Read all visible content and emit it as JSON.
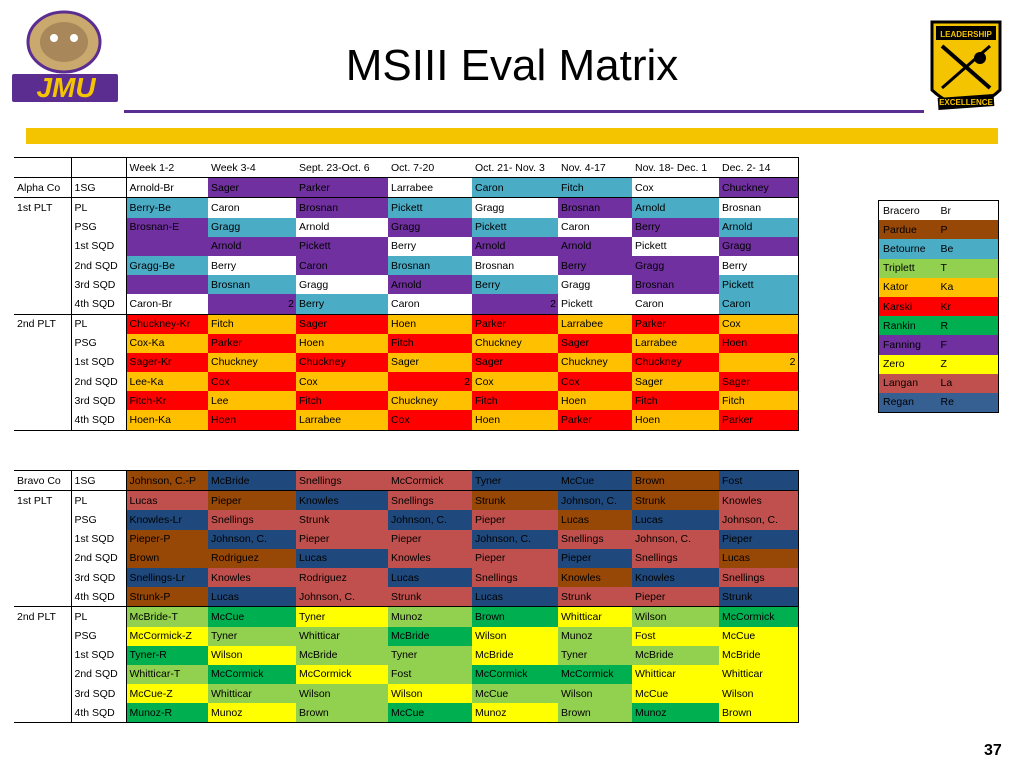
{
  "title": "MSIII Eval Matrix",
  "page_number": "37",
  "logos": {
    "left": "JMU",
    "right_top": "LEADERSHIP",
    "right_bottom": "EXCELLENCE"
  },
  "colors": {
    "gold_bar": "#f5c400",
    "purple_line": "#5b2d91"
  },
  "headers": [
    "",
    "",
    "Week 1-2",
    "Week 3-4",
    "Sept. 23-Oct. 6",
    "Oct. 7-20",
    "Oct. 21- Nov. 3",
    "Nov. 4-17",
    "Nov. 18- Dec. 1",
    "Dec. 2- 14"
  ],
  "alpha_rows": [
    [
      [
        "Alpha Co",
        ""
      ],
      [
        "1SG",
        ""
      ],
      [
        "Arnold-Br",
        ""
      ],
      [
        "Sager",
        "purple"
      ],
      [
        "Parker",
        "purple"
      ],
      [
        "Larrabee",
        ""
      ],
      [
        "Caron",
        "teal"
      ],
      [
        "Fitch",
        "teal"
      ],
      [
        "Cox",
        ""
      ],
      [
        "Chuckney",
        "purple"
      ]
    ],
    [
      [
        "1st PLT",
        ""
      ],
      [
        "PL",
        ""
      ],
      [
        "Berry-Be",
        "teal"
      ],
      [
        "Caron",
        ""
      ],
      [
        "Brosnan",
        "purple"
      ],
      [
        "Pickett",
        "teal"
      ],
      [
        "Gragg",
        ""
      ],
      [
        "Brosnan",
        "purple"
      ],
      [
        "Arnold",
        "teal"
      ],
      [
        "Brosnan",
        ""
      ]
    ],
    [
      [
        "",
        ""
      ],
      [
        "PSG",
        ""
      ],
      [
        "Brosnan-E",
        "purple"
      ],
      [
        "Gragg",
        "teal"
      ],
      [
        "Arnold",
        ""
      ],
      [
        "Gragg",
        "purple"
      ],
      [
        "Pickett",
        "teal"
      ],
      [
        "Caron",
        ""
      ],
      [
        "Berry",
        "purple"
      ],
      [
        "Arnold",
        "teal"
      ]
    ],
    [
      [
        "",
        ""
      ],
      [
        "1st SQD",
        ""
      ],
      [
        "",
        "purple"
      ],
      [
        "Arnold",
        "purple"
      ],
      [
        "Pickett",
        "purple"
      ],
      [
        "Berry",
        ""
      ],
      [
        "Arnold",
        "purple"
      ],
      [
        "Arnold",
        "purple"
      ],
      [
        "Pickett",
        ""
      ],
      [
        "Gragg",
        "purple"
      ]
    ],
    [
      [
        "",
        ""
      ],
      [
        "2nd SQD",
        ""
      ],
      [
        "Gragg-Be",
        "teal"
      ],
      [
        "Berry",
        ""
      ],
      [
        "Caron",
        "purple"
      ],
      [
        "Brosnan",
        "teal"
      ],
      [
        "Brosnan",
        ""
      ],
      [
        "Berry",
        "purple"
      ],
      [
        "Gragg",
        "purple"
      ],
      [
        "Berry",
        ""
      ]
    ],
    [
      [
        "",
        ""
      ],
      [
        "3rd SQD",
        ""
      ],
      [
        "",
        "purple"
      ],
      [
        "Brosnan",
        "teal"
      ],
      [
        "Gragg",
        ""
      ],
      [
        "Arnold",
        "purple"
      ],
      [
        "Berry",
        "teal"
      ],
      [
        "Gragg",
        ""
      ],
      [
        "Brosnan",
        "purple"
      ],
      [
        "Pickett",
        "teal"
      ]
    ],
    [
      [
        "",
        ""
      ],
      [
        "4th SQD",
        ""
      ],
      [
        "Caron-Br",
        ""
      ],
      [
        "2",
        "purple",
        "num"
      ],
      [
        "Berry",
        "teal"
      ],
      [
        "Caron",
        ""
      ],
      [
        "2",
        "purple",
        "num"
      ],
      [
        "Pickett",
        ""
      ],
      [
        "Caron",
        ""
      ],
      [
        "Caron",
        "teal"
      ]
    ],
    [
      [
        "2nd PLT",
        ""
      ],
      [
        "PL",
        ""
      ],
      [
        "Chuckney-Kr",
        "red"
      ],
      [
        "Fitch",
        "orange"
      ],
      [
        "Sager",
        "red"
      ],
      [
        "Hoen",
        "orange"
      ],
      [
        "Parker",
        "red"
      ],
      [
        "Larrabee",
        "orange"
      ],
      [
        "Parker",
        "red"
      ],
      [
        "Cox",
        "orange"
      ]
    ],
    [
      [
        "",
        ""
      ],
      [
        "PSG",
        ""
      ],
      [
        "Cox-Ka",
        "orange"
      ],
      [
        "Parker",
        "red"
      ],
      [
        "Hoen",
        "orange"
      ],
      [
        "Fitch",
        "red"
      ],
      [
        "Chuckney",
        "orange"
      ],
      [
        "Sager",
        "red"
      ],
      [
        "Larrabee",
        "orange"
      ],
      [
        "Hoen",
        "red"
      ]
    ],
    [
      [
        "",
        ""
      ],
      [
        "1st SQD",
        ""
      ],
      [
        "Sager-Kr",
        "red"
      ],
      [
        "Chuckney",
        "orange"
      ],
      [
        "Chuckney",
        "red"
      ],
      [
        "Sager",
        "orange"
      ],
      [
        "Sager",
        "red"
      ],
      [
        "Chuckney",
        "orange"
      ],
      [
        "Chuckney",
        "red"
      ],
      [
        "2",
        "orange",
        "num"
      ]
    ],
    [
      [
        "",
        ""
      ],
      [
        "2nd SQD",
        ""
      ],
      [
        "Lee-Ka",
        "orange"
      ],
      [
        "Cox",
        "red"
      ],
      [
        "Cox",
        "orange"
      ],
      [
        "2",
        "red",
        "num"
      ],
      [
        "Cox",
        "orange"
      ],
      [
        "Cox",
        "red"
      ],
      [
        "Sager",
        "orange"
      ],
      [
        "Sager",
        "red"
      ]
    ],
    [
      [
        "",
        ""
      ],
      [
        "3rd SQD",
        ""
      ],
      [
        "Fitch-Kr",
        "red"
      ],
      [
        "Lee",
        "orange"
      ],
      [
        "Fitch",
        "red"
      ],
      [
        "Chuckney",
        "orange"
      ],
      [
        "Fitch",
        "red"
      ],
      [
        "Hoen",
        "orange"
      ],
      [
        "Fitch",
        "red"
      ],
      [
        "Fitch",
        "orange"
      ]
    ],
    [
      [
        "",
        ""
      ],
      [
        "4th SQD",
        ""
      ],
      [
        "Hoen-Ka",
        "orange"
      ],
      [
        "Hoen",
        "red"
      ],
      [
        "Larrabee",
        "orange"
      ],
      [
        "Cox",
        "red"
      ],
      [
        "Hoen",
        "orange"
      ],
      [
        "Parker",
        "red"
      ],
      [
        "Hoen",
        "orange"
      ],
      [
        "Parker",
        "red"
      ]
    ]
  ],
  "bravo_rows": [
    [
      [
        "Bravo Co",
        ""
      ],
      [
        "1SG",
        ""
      ],
      [
        "Johnson, C.-P",
        "brown"
      ],
      [
        "McBride",
        "blue"
      ],
      [
        "Snellings",
        "rose"
      ],
      [
        "McCormick",
        "rose"
      ],
      [
        "Tyner",
        "blue"
      ],
      [
        "McCue",
        "blue"
      ],
      [
        "Brown",
        "brown"
      ],
      [
        "Fost",
        "blue"
      ]
    ],
    [
      [
        "1st PLT",
        ""
      ],
      [
        "PL",
        ""
      ],
      [
        "Lucas",
        "rose"
      ],
      [
        "Pieper",
        "brown"
      ],
      [
        "Knowles",
        "blue"
      ],
      [
        "Snellings",
        "rose"
      ],
      [
        "Strunk",
        "brown"
      ],
      [
        "Johnson, C.",
        "blue"
      ],
      [
        "Strunk",
        "brown"
      ],
      [
        "Knowles",
        "rose"
      ]
    ],
    [
      [
        "",
        ""
      ],
      [
        "PSG",
        ""
      ],
      [
        "Knowles-Lr",
        "blue"
      ],
      [
        "Snellings",
        "rose"
      ],
      [
        "Strunk",
        "rose"
      ],
      [
        "Johnson, C.",
        "blue"
      ],
      [
        "Pieper",
        "rose"
      ],
      [
        "Lucas",
        "brown"
      ],
      [
        "Lucas",
        "blue"
      ],
      [
        "Johnson, C.",
        "rose"
      ]
    ],
    [
      [
        "",
        ""
      ],
      [
        "1st SQD",
        ""
      ],
      [
        "Pieper-P",
        "brown"
      ],
      [
        "Johnson, C.",
        "blue"
      ],
      [
        "Pieper",
        "rose"
      ],
      [
        "Pieper",
        "rose"
      ],
      [
        "Johnson, C.",
        "blue"
      ],
      [
        "Snellings",
        "rose"
      ],
      [
        "Johnson, C.",
        "rose"
      ],
      [
        "Pieper",
        "blue"
      ]
    ],
    [
      [
        "",
        ""
      ],
      [
        "2nd SQD",
        ""
      ],
      [
        "Brown",
        "brown"
      ],
      [
        "Rodriguez",
        "brown"
      ],
      [
        "Lucas",
        "blue"
      ],
      [
        "Knowles",
        "rose"
      ],
      [
        "Pieper",
        "rose"
      ],
      [
        "Pieper",
        "blue"
      ],
      [
        "Snellings",
        "rose"
      ],
      [
        "Lucas",
        "brown"
      ]
    ],
    [
      [
        "",
        ""
      ],
      [
        "3rd SQD",
        ""
      ],
      [
        "Snellings-Lr",
        "blue"
      ],
      [
        "Knowles",
        "rose"
      ],
      [
        "Rodriguez",
        "rose"
      ],
      [
        "Lucas",
        "blue"
      ],
      [
        "Snellings",
        "rose"
      ],
      [
        "Knowles",
        "brown"
      ],
      [
        "Knowles",
        "blue"
      ],
      [
        "Snellings",
        "rose"
      ]
    ],
    [
      [
        "",
        ""
      ],
      [
        "4th SQD",
        ""
      ],
      [
        "Strunk-P",
        "brown"
      ],
      [
        "Lucas",
        "blue"
      ],
      [
        "Johnson, C.",
        "rose"
      ],
      [
        "Strunk",
        "rose"
      ],
      [
        "Lucas",
        "blue"
      ],
      [
        "Strunk",
        "rose"
      ],
      [
        "Pieper",
        "rose"
      ],
      [
        "Strunk",
        "blue"
      ]
    ],
    [
      [
        "2nd PLT",
        ""
      ],
      [
        "PL",
        ""
      ],
      [
        "McBride-T",
        "green"
      ],
      [
        "McCue",
        "dgreen"
      ],
      [
        "Tyner",
        "yellow"
      ],
      [
        "Munoz",
        "green"
      ],
      [
        "Brown",
        "dgreen"
      ],
      [
        "Whitticar",
        "yellow"
      ],
      [
        "Wilson",
        "green"
      ],
      [
        "McCormick",
        "dgreen"
      ]
    ],
    [
      [
        "",
        ""
      ],
      [
        "PSG",
        ""
      ],
      [
        "McCormick-Z",
        "yellow"
      ],
      [
        "Tyner",
        "green"
      ],
      [
        "Whitticar",
        "green"
      ],
      [
        "McBride",
        "dgreen"
      ],
      [
        "Wilson",
        "yellow"
      ],
      [
        "Munoz",
        "green"
      ],
      [
        "Fost",
        "yellow"
      ],
      [
        "McCue",
        "yellow"
      ]
    ],
    [
      [
        "",
        ""
      ],
      [
        "1st SQD",
        ""
      ],
      [
        "Tyner-R",
        "dgreen"
      ],
      [
        "Wilson",
        "yellow"
      ],
      [
        "McBride",
        "green"
      ],
      [
        "Tyner",
        "green"
      ],
      [
        "McBride",
        "yellow"
      ],
      [
        "Tyner",
        "green"
      ],
      [
        "McBride",
        "green"
      ],
      [
        "McBride",
        "yellow"
      ]
    ],
    [
      [
        "",
        ""
      ],
      [
        "2nd SQD",
        ""
      ],
      [
        "Whitticar-T",
        "green"
      ],
      [
        "McCormick",
        "dgreen"
      ],
      [
        "McCormick",
        "yellow"
      ],
      [
        "Fost",
        "green"
      ],
      [
        "McCormick",
        "dgreen"
      ],
      [
        "McCormick",
        "dgreen"
      ],
      [
        "Whitticar",
        "yellow"
      ],
      [
        "Whitticar",
        "yellow"
      ]
    ],
    [
      [
        "",
        ""
      ],
      [
        "3rd SQD",
        ""
      ],
      [
        "McCue-Z",
        "yellow"
      ],
      [
        "Whitticar",
        "green"
      ],
      [
        "Wilson",
        "green"
      ],
      [
        "Wilson",
        "yellow"
      ],
      [
        "McCue",
        "green"
      ],
      [
        "Wilson",
        "green"
      ],
      [
        "McCue",
        "yellow"
      ],
      [
        "Wilson",
        "yellow"
      ]
    ],
    [
      [
        "",
        ""
      ],
      [
        "4th SQD",
        ""
      ],
      [
        "Munoz-R",
        "dgreen"
      ],
      [
        "Munoz",
        "yellow"
      ],
      [
        "Brown",
        "green"
      ],
      [
        "McCue",
        "dgreen"
      ],
      [
        "Munoz",
        "yellow"
      ],
      [
        "Brown",
        "green"
      ],
      [
        "Munoz",
        "dgreen"
      ],
      [
        "Brown",
        "yellow"
      ]
    ]
  ],
  "legend": [
    [
      "Bracero",
      "Br",
      ""
    ],
    [
      "Pardue",
      "P",
      "brown"
    ],
    [
      "Betourne",
      "Be",
      "teal"
    ],
    [
      "Triplett",
      "T",
      "green"
    ],
    [
      "Kator",
      "Ka",
      "orange"
    ],
    [
      "Karski",
      "Kr",
      "red"
    ],
    [
      "Rankin",
      "R",
      "dgreen"
    ],
    [
      "Fanning",
      "F",
      "purple"
    ],
    [
      "Zero",
      "Z",
      "yellow"
    ],
    [
      "Langan",
      "La",
      "rose"
    ],
    [
      "Regan",
      "Re",
      "sblue"
    ]
  ]
}
